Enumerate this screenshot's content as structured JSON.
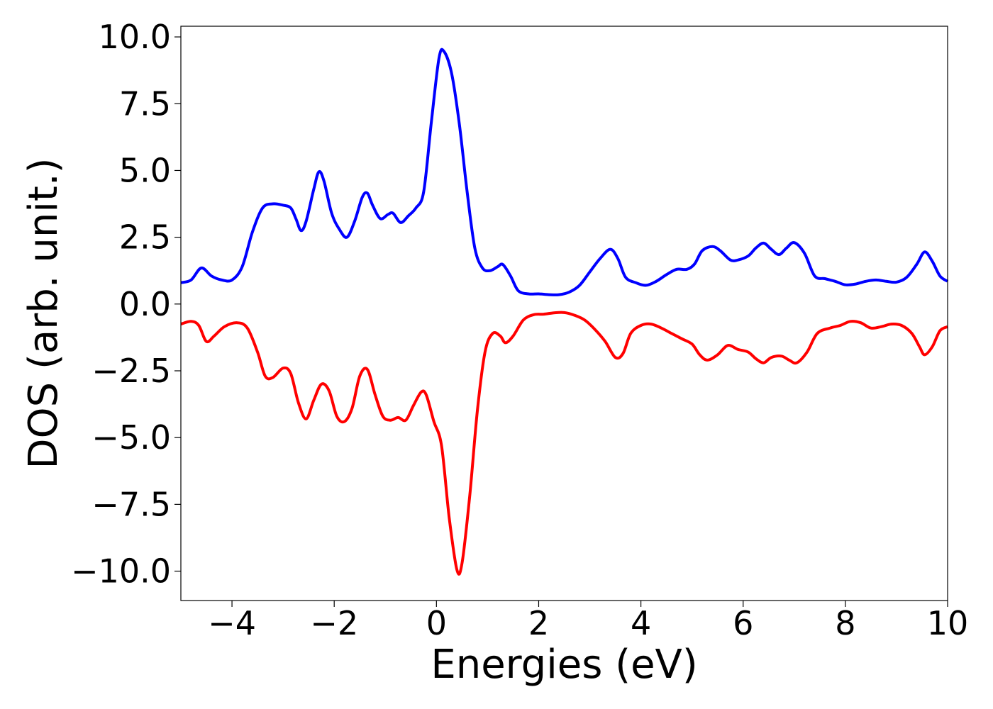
{
  "chart_data": {
    "type": "line",
    "xlabel": "Energies (eV)",
    "ylabel": "DOS (arb. unit.)",
    "xlim": [
      -5,
      10
    ],
    "ylim": [
      -11.1,
      10.4
    ],
    "xticks": [
      -4,
      -2,
      0,
      2,
      4,
      6,
      8,
      10
    ],
    "xtick_labels": [
      "−4",
      "−2",
      "0",
      "2",
      "4",
      "6",
      "8",
      "10"
    ],
    "yticks": [
      10.0,
      7.5,
      5.0,
      2.5,
      0.0,
      -2.5,
      -5.0,
      -7.5,
      -10.0
    ],
    "ytick_labels": [
      "10.0",
      "7.5",
      "5.0",
      "2.5",
      "0.0",
      "−2.5",
      "−5.0",
      "−7.5",
      "−10.0"
    ],
    "grid": false,
    "series": [
      {
        "color": "#0000ff",
        "points": [
          [
            -5.0,
            0.8
          ],
          [
            -4.8,
            0.9
          ],
          [
            -4.6,
            1.35
          ],
          [
            -4.4,
            1.05
          ],
          [
            -4.2,
            0.9
          ],
          [
            -4.0,
            0.9
          ],
          [
            -3.8,
            1.4
          ],
          [
            -3.6,
            2.7
          ],
          [
            -3.4,
            3.6
          ],
          [
            -3.2,
            3.75
          ],
          [
            -3.0,
            3.7
          ],
          [
            -2.85,
            3.6
          ],
          [
            -2.75,
            3.2
          ],
          [
            -2.65,
            2.75
          ],
          [
            -2.55,
            3.1
          ],
          [
            -2.4,
            4.3
          ],
          [
            -2.3,
            4.95
          ],
          [
            -2.2,
            4.6
          ],
          [
            -2.05,
            3.4
          ],
          [
            -1.9,
            2.8
          ],
          [
            -1.75,
            2.5
          ],
          [
            -1.6,
            3.1
          ],
          [
            -1.45,
            4.0
          ],
          [
            -1.35,
            4.15
          ],
          [
            -1.25,
            3.7
          ],
          [
            -1.1,
            3.2
          ],
          [
            -0.95,
            3.35
          ],
          [
            -0.85,
            3.4
          ],
          [
            -0.7,
            3.05
          ],
          [
            -0.55,
            3.3
          ],
          [
            -0.4,
            3.6
          ],
          [
            -0.25,
            4.2
          ],
          [
            -0.1,
            6.8
          ],
          [
            0.05,
            9.2
          ],
          [
            0.15,
            9.45
          ],
          [
            0.3,
            8.6
          ],
          [
            0.45,
            6.7
          ],
          [
            0.6,
            4.2
          ],
          [
            0.75,
            2.1
          ],
          [
            0.9,
            1.35
          ],
          [
            1.05,
            1.25
          ],
          [
            1.2,
            1.4
          ],
          [
            1.3,
            1.48
          ],
          [
            1.45,
            1.05
          ],
          [
            1.6,
            0.5
          ],
          [
            1.8,
            0.38
          ],
          [
            2.0,
            0.38
          ],
          [
            2.2,
            0.35
          ],
          [
            2.4,
            0.35
          ],
          [
            2.6,
            0.45
          ],
          [
            2.8,
            0.7
          ],
          [
            3.0,
            1.2
          ],
          [
            3.2,
            1.7
          ],
          [
            3.4,
            2.05
          ],
          [
            3.55,
            1.7
          ],
          [
            3.7,
            1.0
          ],
          [
            3.9,
            0.8
          ],
          [
            4.1,
            0.7
          ],
          [
            4.3,
            0.85
          ],
          [
            4.5,
            1.1
          ],
          [
            4.7,
            1.3
          ],
          [
            4.9,
            1.3
          ],
          [
            5.05,
            1.5
          ],
          [
            5.2,
            2.0
          ],
          [
            5.4,
            2.15
          ],
          [
            5.55,
            2.0
          ],
          [
            5.75,
            1.65
          ],
          [
            5.9,
            1.65
          ],
          [
            6.1,
            1.8
          ],
          [
            6.25,
            2.1
          ],
          [
            6.4,
            2.28
          ],
          [
            6.55,
            2.05
          ],
          [
            6.7,
            1.85
          ],
          [
            6.85,
            2.1
          ],
          [
            7.0,
            2.3
          ],
          [
            7.2,
            1.9
          ],
          [
            7.4,
            1.05
          ],
          [
            7.6,
            0.95
          ],
          [
            7.8,
            0.85
          ],
          [
            8.0,
            0.72
          ],
          [
            8.2,
            0.75
          ],
          [
            8.4,
            0.85
          ],
          [
            8.6,
            0.9
          ],
          [
            8.8,
            0.85
          ],
          [
            9.0,
            0.82
          ],
          [
            9.2,
            1.0
          ],
          [
            9.4,
            1.5
          ],
          [
            9.55,
            1.95
          ],
          [
            9.7,
            1.6
          ],
          [
            9.85,
            1.05
          ],
          [
            10.0,
            0.85
          ]
        ]
      },
      {
        "color": "#ff0000",
        "points": [
          [
            -5.0,
            -0.75
          ],
          [
            -4.8,
            -0.65
          ],
          [
            -4.65,
            -0.8
          ],
          [
            -4.5,
            -1.4
          ],
          [
            -4.35,
            -1.2
          ],
          [
            -4.15,
            -0.85
          ],
          [
            -3.9,
            -0.7
          ],
          [
            -3.7,
            -0.9
          ],
          [
            -3.5,
            -1.8
          ],
          [
            -3.35,
            -2.7
          ],
          [
            -3.2,
            -2.75
          ],
          [
            -3.0,
            -2.4
          ],
          [
            -2.85,
            -2.6
          ],
          [
            -2.7,
            -3.7
          ],
          [
            -2.55,
            -4.3
          ],
          [
            -2.4,
            -3.6
          ],
          [
            -2.25,
            -3.0
          ],
          [
            -2.1,
            -3.25
          ],
          [
            -1.95,
            -4.2
          ],
          [
            -1.8,
            -4.4
          ],
          [
            -1.65,
            -3.9
          ],
          [
            -1.5,
            -2.7
          ],
          [
            -1.35,
            -2.45
          ],
          [
            -1.2,
            -3.4
          ],
          [
            -1.05,
            -4.2
          ],
          [
            -0.9,
            -4.35
          ],
          [
            -0.75,
            -4.25
          ],
          [
            -0.6,
            -4.35
          ],
          [
            -0.45,
            -3.8
          ],
          [
            -0.3,
            -3.3
          ],
          [
            -0.2,
            -3.4
          ],
          [
            -0.05,
            -4.4
          ],
          [
            0.1,
            -5.3
          ],
          [
            0.25,
            -8.0
          ],
          [
            0.4,
            -9.95
          ],
          [
            0.5,
            -9.7
          ],
          [
            0.65,
            -7.2
          ],
          [
            0.8,
            -4.0
          ],
          [
            0.95,
            -1.8
          ],
          [
            1.1,
            -1.1
          ],
          [
            1.25,
            -1.2
          ],
          [
            1.35,
            -1.45
          ],
          [
            1.5,
            -1.2
          ],
          [
            1.7,
            -0.6
          ],
          [
            1.9,
            -0.4
          ],
          [
            2.1,
            -0.38
          ],
          [
            2.3,
            -0.33
          ],
          [
            2.5,
            -0.32
          ],
          [
            2.7,
            -0.42
          ],
          [
            2.9,
            -0.6
          ],
          [
            3.1,
            -0.95
          ],
          [
            3.3,
            -1.4
          ],
          [
            3.5,
            -2.0
          ],
          [
            3.65,
            -1.85
          ],
          [
            3.8,
            -1.1
          ],
          [
            4.0,
            -0.8
          ],
          [
            4.2,
            -0.75
          ],
          [
            4.4,
            -0.9
          ],
          [
            4.6,
            -1.1
          ],
          [
            4.8,
            -1.3
          ],
          [
            5.0,
            -1.5
          ],
          [
            5.15,
            -1.9
          ],
          [
            5.3,
            -2.1
          ],
          [
            5.5,
            -1.9
          ],
          [
            5.7,
            -1.55
          ],
          [
            5.9,
            -1.7
          ],
          [
            6.1,
            -1.8
          ],
          [
            6.25,
            -2.05
          ],
          [
            6.4,
            -2.2
          ],
          [
            6.55,
            -2.0
          ],
          [
            6.75,
            -1.95
          ],
          [
            6.9,
            -2.1
          ],
          [
            7.05,
            -2.2
          ],
          [
            7.25,
            -1.8
          ],
          [
            7.45,
            -1.1
          ],
          [
            7.7,
            -0.9
          ],
          [
            7.9,
            -0.8
          ],
          [
            8.1,
            -0.65
          ],
          [
            8.3,
            -0.7
          ],
          [
            8.5,
            -0.9
          ],
          [
            8.7,
            -0.85
          ],
          [
            8.9,
            -0.75
          ],
          [
            9.1,
            -0.8
          ],
          [
            9.3,
            -1.1
          ],
          [
            9.45,
            -1.6
          ],
          [
            9.55,
            -1.9
          ],
          [
            9.7,
            -1.6
          ],
          [
            9.85,
            -1.0
          ],
          [
            10.0,
            -0.85
          ]
        ]
      }
    ]
  }
}
